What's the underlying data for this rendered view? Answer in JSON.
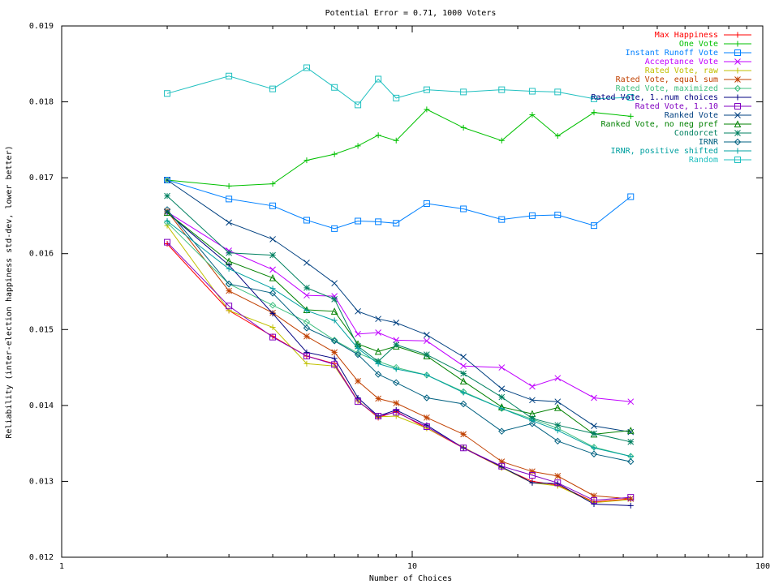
{
  "chart_data": {
    "type": "line",
    "title": "Potential Error = 0.71, 1000 Voters",
    "xlabel": "Number of Choices",
    "ylabel": "Reliability (inter-election happiness std-dev, lower better)",
    "x_scale": "log",
    "xlim": [
      1,
      100
    ],
    "ylim": [
      0.012,
      0.019
    ],
    "x_ticks": [
      1,
      10,
      100
    ],
    "x_tick_labels": [
      "1",
      "10",
      "100"
    ],
    "y_ticks": [
      0.012,
      0.013,
      0.014,
      0.015,
      0.016,
      0.017,
      0.018,
      0.019
    ],
    "y_tick_labels": [
      "0.012",
      "0.013",
      "0.014",
      "0.015",
      "0.016",
      "0.017",
      "0.018",
      "0.019"
    ],
    "grid": false,
    "legend_position": "top-right",
    "x": [
      2,
      3,
      4,
      5,
      6,
      7,
      8,
      9,
      11,
      14,
      18,
      22,
      26,
      33,
      42
    ],
    "series": [
      {
        "name": "Max Happiness",
        "color": "#ff0000",
        "marker": "plus",
        "values": [
          0.01613,
          0.01525,
          0.01491,
          0.01465,
          0.01455,
          0.01406,
          0.01384,
          0.01392,
          0.0137,
          0.01344,
          0.01318,
          0.013,
          0.01295,
          0.01273,
          0.01277
        ]
      },
      {
        "name": "One Vote",
        "color": "#00c000",
        "marker": "plus",
        "values": [
          0.01697,
          0.01689,
          0.01692,
          0.01723,
          0.01731,
          0.01742,
          0.01756,
          0.01749,
          0.0179,
          0.01766,
          0.01749,
          0.01783,
          0.01755,
          0.01786,
          0.01781
        ]
      },
      {
        "name": "Instant Runoff Vote",
        "color": "#0080ff",
        "marker": "square",
        "values": [
          0.01697,
          0.01672,
          0.01663,
          0.01644,
          0.01633,
          0.01643,
          0.01642,
          0.0164,
          0.01666,
          0.01659,
          0.01645,
          0.0165,
          0.01651,
          0.01637,
          0.01675
        ]
      },
      {
        "name": "Acceptance Vote",
        "color": "#c000ff",
        "marker": "x",
        "values": [
          0.01655,
          0.01604,
          0.01579,
          0.01545,
          0.01544,
          0.01494,
          0.01496,
          0.01486,
          0.01485,
          0.01452,
          0.0145,
          0.01425,
          0.01436,
          0.0141,
          0.01405
        ]
      },
      {
        "name": "Rated Vote, raw",
        "color": "#c0c000",
        "marker": "plus",
        "values": [
          0.01637,
          0.01525,
          0.01503,
          0.01455,
          0.01452,
          0.01406,
          0.01385,
          0.01386,
          0.0137,
          0.01345,
          0.01318,
          0.01298,
          0.01294,
          0.01272,
          0.01276
        ]
      },
      {
        "name": "Rated Vote, equal sum",
        "color": "#c04000",
        "marker": "star",
        "values": [
          0.01656,
          0.01551,
          0.01522,
          0.01491,
          0.0147,
          0.01432,
          0.01409,
          0.01403,
          0.01384,
          0.01362,
          0.01326,
          0.01313,
          0.01307,
          0.01281,
          0.01277
        ]
      },
      {
        "name": "Rated Vote, maximized",
        "color": "#40c080",
        "marker": "diamond",
        "values": [
          0.01641,
          0.0156,
          0.01532,
          0.0151,
          0.01486,
          0.01469,
          0.01458,
          0.0145,
          0.0144,
          0.01418,
          0.01396,
          0.01382,
          0.0137,
          0.01345,
          0.01333
        ]
      },
      {
        "name": "Rated Vote, 1..num choices",
        "color": "#000080",
        "marker": "plus",
        "values": [
          0.01654,
          0.01585,
          0.01521,
          0.0147,
          0.01462,
          0.0141,
          0.01386,
          0.01394,
          0.01374,
          0.01344,
          0.01319,
          0.01298,
          0.01297,
          0.0127,
          0.01268
        ]
      },
      {
        "name": "Rated Vote, 1..10",
        "color": "#8000c0",
        "marker": "square",
        "values": [
          0.01615,
          0.01531,
          0.0149,
          0.01465,
          0.01454,
          0.01405,
          0.01386,
          0.01391,
          0.01372,
          0.01344,
          0.0132,
          0.01308,
          0.01298,
          0.01275,
          0.01279
        ]
      },
      {
        "name": "Ranked Vote",
        "color": "#004080",
        "marker": "x",
        "values": [
          0.01697,
          0.01641,
          0.01619,
          0.01588,
          0.01561,
          0.01524,
          0.01514,
          0.01509,
          0.01493,
          0.01464,
          0.01422,
          0.01407,
          0.01405,
          0.01373,
          0.01365
        ]
      },
      {
        "name": "Ranked Vote, no neg pref",
        "color": "#008000",
        "marker": "triangle",
        "values": [
          0.01654,
          0.0159,
          0.01568,
          0.01526,
          0.01524,
          0.01481,
          0.01471,
          0.01478,
          0.01465,
          0.01432,
          0.01398,
          0.01389,
          0.01397,
          0.01362,
          0.01367
        ]
      },
      {
        "name": "Condorcet",
        "color": "#008060",
        "marker": "star",
        "values": [
          0.01676,
          0.01601,
          0.01598,
          0.01555,
          0.0154,
          0.01478,
          0.01458,
          0.0148,
          0.01467,
          0.01442,
          0.01411,
          0.01383,
          0.01374,
          0.01363,
          0.01352
        ]
      },
      {
        "name": "IRNR",
        "color": "#006080",
        "marker": "diamond",
        "values": [
          0.01658,
          0.0156,
          0.01548,
          0.01502,
          0.01485,
          0.01467,
          0.01441,
          0.0143,
          0.0141,
          0.01402,
          0.01366,
          0.01376,
          0.01353,
          0.01336,
          0.01326
        ]
      },
      {
        "name": "IRNR, positive shifted",
        "color": "#00a0a0",
        "marker": "plus",
        "values": [
          0.01643,
          0.0158,
          0.01554,
          0.01525,
          0.01512,
          0.01475,
          0.01455,
          0.01448,
          0.0144,
          0.01417,
          0.01396,
          0.0138,
          0.01367,
          0.01344,
          0.01333
        ]
      },
      {
        "name": "Random",
        "color": "#20c0c0",
        "marker": "square",
        "values": [
          0.01811,
          0.01834,
          0.01817,
          0.01845,
          0.01819,
          0.01796,
          0.0183,
          0.01805,
          0.01816,
          0.01813,
          0.01816,
          0.01814,
          0.01813,
          0.01804,
          0.01806
        ]
      }
    ]
  }
}
